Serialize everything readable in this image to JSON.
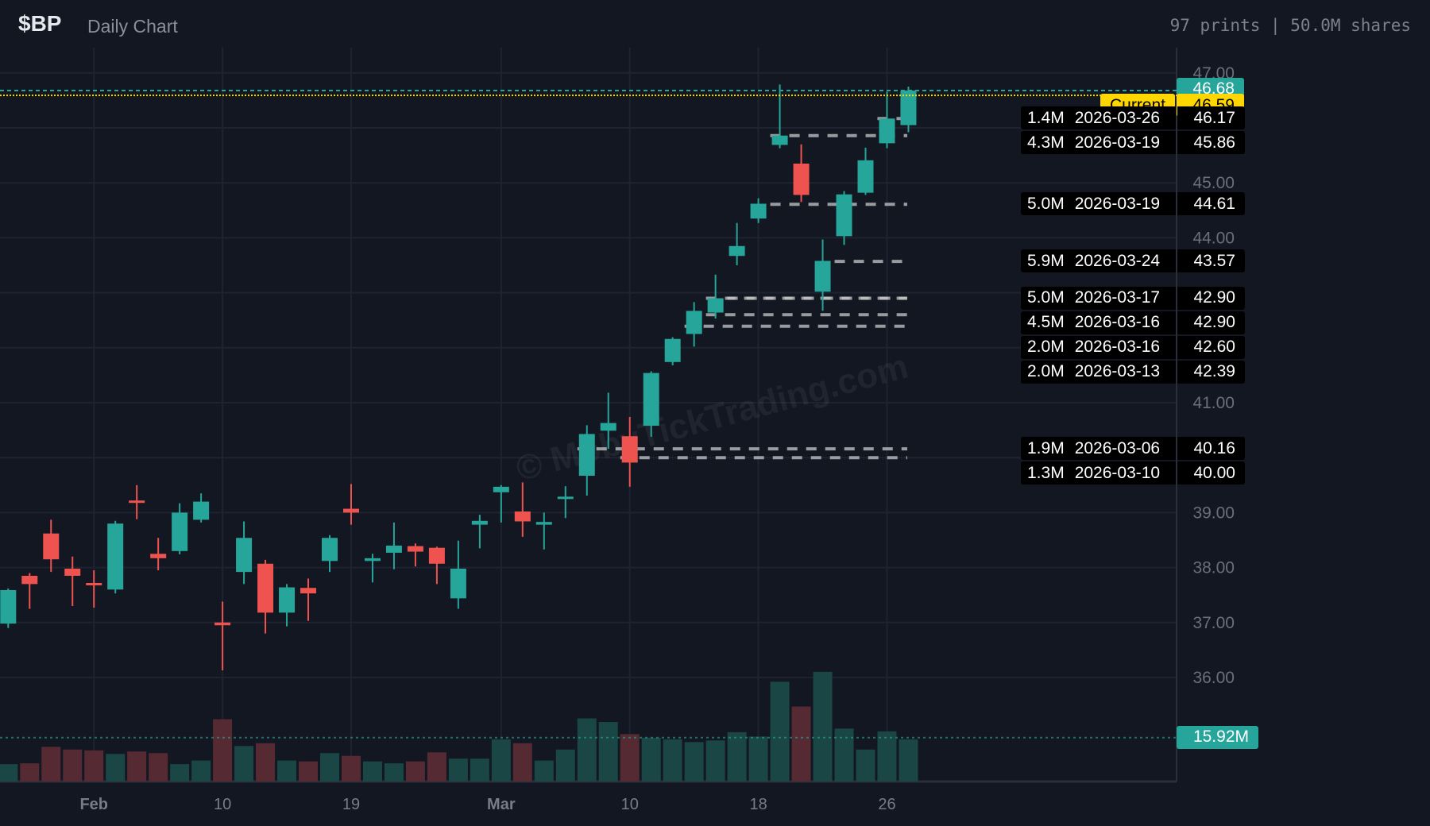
{
  "header": {
    "symbol": "$BP",
    "subtitle": "Daily Chart",
    "stats": "97 prints | 50.0M shares"
  },
  "watermark": "© MobyTickTrading.com",
  "colors": {
    "up": "#26a69a",
    "down": "#ef5350",
    "up_volume": "#1b4646",
    "down_volume": "#552a32",
    "current": "#ffd700",
    "background": "#131722",
    "grid": "#1f2330"
  },
  "chart_data": {
    "type": "candlestick",
    "ylim": [
      35.4,
      47.2
    ],
    "y_ticks": [
      "47.00",
      "45.00",
      "44.00",
      "41.00",
      "39.00",
      "38.00",
      "37.00",
      "36.00"
    ],
    "y_tick_values": [
      47,
      45,
      44,
      41,
      39,
      38,
      37,
      36
    ],
    "x_ticks": [
      {
        "label": "Feb",
        "date": "2026-02-02"
      },
      {
        "label": "10",
        "date": "2026-02-10"
      },
      {
        "label": "19",
        "date": "2026-02-19"
      },
      {
        "label": "Mar",
        "date": "2026-03-02"
      },
      {
        "label": "10",
        "date": "2026-03-10"
      },
      {
        "label": "18",
        "date": "2026-03-18"
      },
      {
        "label": "26",
        "date": "2026-03-26"
      }
    ],
    "columns": [
      "date",
      "open",
      "high",
      "low",
      "close",
      "volume_M"
    ],
    "candles": [
      [
        "2026-01-27",
        36.98,
        37.62,
        36.9,
        37.59,
        6.3
      ],
      [
        "2026-01-28",
        37.85,
        37.9,
        37.25,
        37.7,
        6.6
      ],
      [
        "2026-01-29",
        38.62,
        38.87,
        37.92,
        38.15,
        12.6
      ],
      [
        "2026-01-30",
        37.98,
        38.2,
        37.3,
        37.85,
        11.6
      ],
      [
        "2026-02-02",
        37.72,
        37.95,
        37.27,
        37.7,
        11.3
      ],
      [
        "2026-02-03",
        37.6,
        38.85,
        37.53,
        38.8,
        10.0
      ],
      [
        "2026-02-04",
        39.22,
        39.5,
        38.88,
        39.18,
        10.9
      ],
      [
        "2026-02-05",
        38.25,
        38.54,
        37.95,
        38.17,
        10.3
      ],
      [
        "2026-02-06",
        38.3,
        39.17,
        38.24,
        39.0,
        6.3
      ],
      [
        "2026-02-09",
        38.87,
        39.35,
        38.82,
        39.2,
        7.6
      ],
      [
        "2026-02-10",
        37.0,
        37.38,
        36.13,
        36.95,
        22.6
      ],
      [
        "2026-02-11",
        37.92,
        38.84,
        37.7,
        38.54,
        12.9
      ],
      [
        "2026-02-12",
        38.07,
        38.14,
        36.8,
        37.18,
        13.9
      ],
      [
        "2026-02-13",
        37.18,
        37.7,
        36.93,
        37.64,
        7.6
      ],
      [
        "2026-02-17",
        37.63,
        37.8,
        37.03,
        37.53,
        7.3
      ],
      [
        "2026-02-18",
        38.12,
        38.59,
        37.92,
        38.54,
        10.3
      ],
      [
        "2026-02-19",
        39.07,
        39.52,
        38.78,
        39.0,
        9.3
      ],
      [
        "2026-02-20",
        38.12,
        38.25,
        37.73,
        38.17,
        7.3
      ],
      [
        "2026-02-23",
        38.27,
        38.82,
        37.97,
        38.4,
        6.6
      ],
      [
        "2026-02-24",
        38.39,
        38.44,
        38.02,
        38.29,
        7.3
      ],
      [
        "2026-02-25",
        38.36,
        38.38,
        37.7,
        38.07,
        10.6
      ],
      [
        "2026-02-26",
        37.44,
        38.49,
        37.25,
        37.98,
        8.3
      ],
      [
        "2026-02-27",
        38.78,
        38.96,
        38.35,
        38.85,
        8.3
      ],
      [
        "2026-03-02",
        39.37,
        39.5,
        38.82,
        39.47,
        15.3
      ],
      [
        "2026-03-03",
        39.02,
        39.55,
        38.56,
        38.84,
        13.9
      ],
      [
        "2026-03-04",
        38.78,
        39.0,
        38.33,
        38.83,
        7.6
      ],
      [
        "2026-03-05",
        39.25,
        39.48,
        38.9,
        39.29,
        11.6
      ],
      [
        "2026-03-06",
        39.67,
        40.59,
        39.31,
        40.43,
        22.9
      ],
      [
        "2026-03-09",
        40.49,
        41.18,
        40.16,
        40.63,
        21.6
      ],
      [
        "2026-03-10",
        40.39,
        40.74,
        39.47,
        39.91,
        17.2
      ],
      [
        "2026-03-11",
        40.58,
        41.57,
        40.38,
        41.54,
        15.9
      ],
      [
        "2026-03-12",
        41.74,
        42.19,
        41.68,
        42.16,
        15.3
      ],
      [
        "2026-03-13",
        42.25,
        42.83,
        42.02,
        42.67,
        14.3
      ],
      [
        "2026-03-16",
        42.64,
        43.33,
        42.53,
        42.9,
        14.9
      ],
      [
        "2026-03-17",
        43.67,
        44.27,
        43.5,
        43.85,
        17.9
      ],
      [
        "2026-03-18",
        44.35,
        44.72,
        44.27,
        44.62,
        16.3
      ],
      [
        "2026-03-19",
        45.69,
        46.79,
        45.63,
        45.86,
        36.2
      ],
      [
        "2026-03-20",
        45.35,
        45.7,
        44.65,
        44.78,
        27.2
      ],
      [
        "2026-03-23",
        43.02,
        43.97,
        42.67,
        43.58,
        39.8
      ],
      [
        "2026-03-24",
        44.03,
        44.85,
        43.87,
        44.79,
        19.2
      ],
      [
        "2026-03-25",
        44.82,
        45.64,
        44.78,
        45.41,
        11.6
      ],
      [
        "2026-03-26",
        45.72,
        46.66,
        45.63,
        46.17,
        18.2
      ],
      [
        "2026-03-27",
        46.05,
        46.75,
        45.92,
        46.68,
        15.3
      ]
    ],
    "last_price": "46.68",
    "volume_average_label": "15.92M",
    "volume_average": 15.92
  },
  "current": {
    "label": "Current",
    "price": "46.59",
    "value": 46.59
  },
  "levels": [
    {
      "size": "1.4M",
      "date": "2026-03-26",
      "price": "46.17"
    },
    {
      "size": "4.3M",
      "date": "2026-03-19",
      "price": "45.86"
    },
    {
      "size": "5.0M",
      "date": "2026-03-19",
      "price": "44.61"
    },
    {
      "size": "5.9M",
      "date": "2026-03-24",
      "price": "43.57"
    },
    {
      "size": "5.0M",
      "date": "2026-03-17",
      "price": "42.90"
    },
    {
      "size": "4.5M",
      "date": "2026-03-16",
      "price": "42.90"
    },
    {
      "size": "2.0M",
      "date": "2026-03-16",
      "price": "42.60"
    },
    {
      "size": "2.0M",
      "date": "2026-03-13",
      "price": "42.39"
    },
    {
      "size": "1.9M",
      "date": "2026-03-06",
      "price": "40.16"
    },
    {
      "size": "1.3M",
      "date": "2026-03-10",
      "price": "40.00"
    }
  ]
}
